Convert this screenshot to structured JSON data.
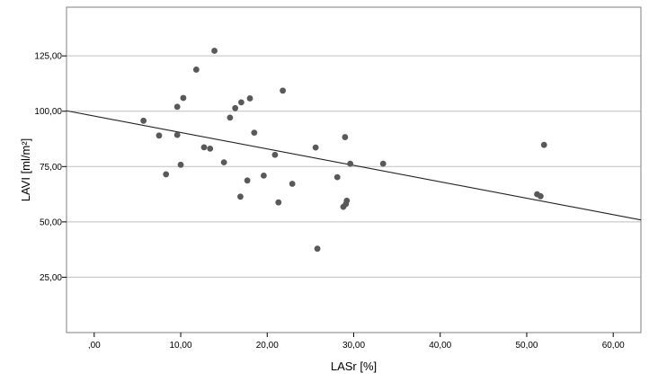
{
  "chart_data": {
    "type": "scatter",
    "title": "",
    "xlabel": "LASr [%]",
    "ylabel": "LAVI [ml/m²]",
    "xlim": [
      -3.2,
      63.2
    ],
    "ylim": [
      0,
      147
    ],
    "x_ticks": [
      0,
      10,
      20,
      30,
      40,
      50,
      60
    ],
    "x_tick_labels": [
      ",00",
      "10,00",
      "20,00",
      "30,00",
      "40,00",
      "50,00",
      "60,00"
    ],
    "y_ticks": [
      25,
      50,
      75,
      100,
      125
    ],
    "y_tick_labels": [
      "25,00",
      "50,00",
      "75,00",
      "100,00",
      "125,00"
    ],
    "grid": {
      "horizontal": true,
      "vertical": false
    },
    "legend": "none",
    "colors": {
      "points": "#595959",
      "fit_line": "#222222",
      "grid": "#bfbfbf",
      "frame": "#7f7f7f"
    },
    "series": [
      {
        "points": [
          {
            "x": 5.7,
            "y": 95.7
          },
          {
            "x": 7.5,
            "y": 89.0
          },
          {
            "x": 8.3,
            "y": 71.5
          },
          {
            "x": 9.6,
            "y": 102.0
          },
          {
            "x": 9.6,
            "y": 89.3
          },
          {
            "x": 10.0,
            "y": 75.8
          },
          {
            "x": 10.3,
            "y": 106.0
          },
          {
            "x": 11.8,
            "y": 118.8
          },
          {
            "x": 12.7,
            "y": 83.7
          },
          {
            "x": 13.4,
            "y": 83.1
          },
          {
            "x": 13.9,
            "y": 127.3
          },
          {
            "x": 15.0,
            "y": 76.9
          },
          {
            "x": 15.7,
            "y": 97.1
          },
          {
            "x": 16.3,
            "y": 101.4
          },
          {
            "x": 16.9,
            "y": 61.4
          },
          {
            "x": 17.0,
            "y": 104.0
          },
          {
            "x": 17.7,
            "y": 68.7
          },
          {
            "x": 18.0,
            "y": 105.8
          },
          {
            "x": 18.5,
            "y": 90.3
          },
          {
            "x": 19.6,
            "y": 70.9
          },
          {
            "x": 20.9,
            "y": 80.3
          },
          {
            "x": 21.3,
            "y": 58.8
          },
          {
            "x": 21.8,
            "y": 109.3
          },
          {
            "x": 22.9,
            "y": 67.2
          },
          {
            "x": 25.6,
            "y": 83.6
          },
          {
            "x": 25.8,
            "y": 37.9
          },
          {
            "x": 28.1,
            "y": 70.2
          },
          {
            "x": 28.8,
            "y": 56.8
          },
          {
            "x": 29.0,
            "y": 88.3
          },
          {
            "x": 29.1,
            "y": 58.1
          },
          {
            "x": 29.2,
            "y": 59.6
          },
          {
            "x": 29.6,
            "y": 76.3
          },
          {
            "x": 33.4,
            "y": 76.3
          },
          {
            "x": 51.2,
            "y": 62.5
          },
          {
            "x": 51.6,
            "y": 61.6
          },
          {
            "x": 52.0,
            "y": 84.8
          }
        ]
      }
    ],
    "fit_line": {
      "x": [
        -3.2,
        63.2
      ],
      "y": [
        100.2,
        50.9
      ]
    }
  }
}
